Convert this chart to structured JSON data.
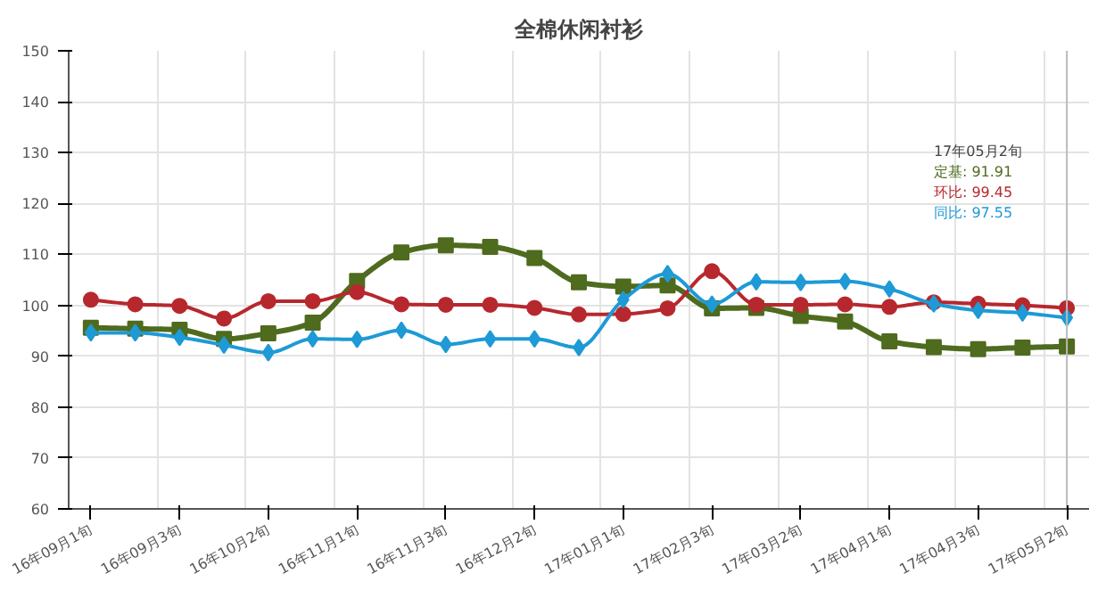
{
  "chart_data": {
    "type": "line",
    "title": "全棉休闲衬衫",
    "categories": [
      "16年09月1旬",
      null,
      "16年09月3旬",
      null,
      "16年10月2旬",
      null,
      "16年11月1旬",
      null,
      "16年11月3旬",
      null,
      "16年12月2旬",
      null,
      "17年01月1旬",
      null,
      "17年02月3旬",
      null,
      "17年03月2旬",
      null,
      "17年04月1旬",
      null,
      "17年04月3旬",
      null,
      "17年05月2旬"
    ],
    "series": [
      {
        "color": "#4e6b1e",
        "marker": "square",
        "values": [
          95.6,
          95.4,
          95.2,
          93.4,
          94.5,
          96.6,
          104.8,
          110.4,
          111.8,
          111.5,
          109.3,
          104.5,
          103.7,
          103.9,
          99.4,
          99.5,
          97.9,
          96.8,
          92.9,
          91.8,
          91.4,
          91.7,
          91.91
        ]
      },
      {
        "color": "#b7282e",
        "marker": "circle",
        "values": [
          101.1,
          100.2,
          99.9,
          97.4,
          100.8,
          100.8,
          102.6,
          100.2,
          100.1,
          100.1,
          99.5,
          98.2,
          98.3,
          99.4,
          106.7,
          100.1,
          100.1,
          100.2,
          99.7,
          100.6,
          100.3,
          100.0,
          99.45
        ]
      },
      {
        "color": "#1e9ad6",
        "marker": "diamond",
        "values": [
          94.6,
          94.6,
          93.7,
          92.2,
          90.7,
          93.4,
          93.3,
          95.1,
          92.3,
          93.4,
          93.4,
          91.7,
          101.1,
          106.2,
          100.2,
          104.6,
          104.5,
          104.7,
          103.2,
          100.3,
          99.0,
          98.5,
          97.55
        ]
      }
    ],
    "annotations": [
      "17年05月2旬",
      "定基: 91.91",
      "环比: 99.45",
      "同比: 97.55"
    ],
    "ref_lines": [
      {
        "axis": "x",
        "value": "17年05月2旬",
        "color": "#bbbbbb"
      }
    ],
    "ylim": [
      60,
      150
    ],
    "yticks": [
      60,
      70,
      80,
      90,
      100,
      110,
      120,
      130,
      140,
      150
    ],
    "grid": true
  }
}
